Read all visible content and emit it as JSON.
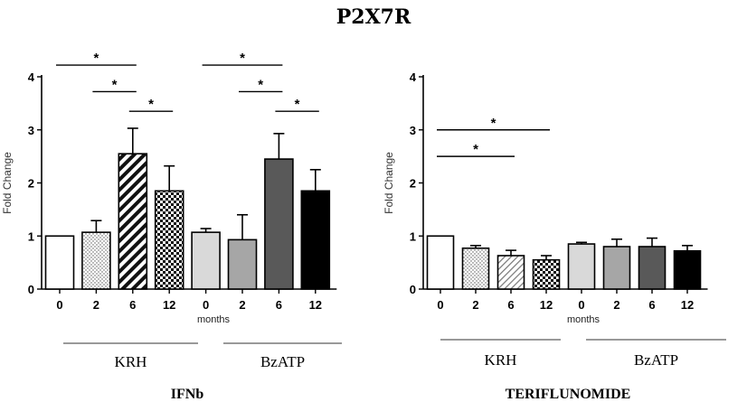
{
  "figure_title": "P2X7R",
  "chart_data": [
    {
      "type": "bar",
      "subtitle": "IFNb",
      "ylabel": "Fold Change",
      "xlabel": "months",
      "ylim": [
        0,
        4
      ],
      "yticks": [
        "0",
        "1",
        "2",
        "3",
        "4"
      ],
      "categories": [
        "0",
        "2",
        "6",
        "12",
        "0",
        "2",
        "6",
        "12"
      ],
      "groups": [
        "KRH",
        "BzATP"
      ],
      "values": [
        1.0,
        1.07,
        2.55,
        1.85,
        1.07,
        0.93,
        2.45,
        1.85
      ],
      "errors": [
        0.0,
        0.22,
        0.48,
        0.47,
        0.07,
        0.47,
        0.48,
        0.4
      ],
      "annotations": [
        {
          "from": 0,
          "to": 2,
          "y": 4.22,
          "label": "*"
        },
        {
          "from": 1,
          "to": 2,
          "y": 3.72,
          "label": "*"
        },
        {
          "from": 2,
          "to": 3,
          "y": 3.35,
          "label": "*"
        },
        {
          "from": 4,
          "to": 6,
          "y": 4.22,
          "label": "*"
        },
        {
          "from": 5,
          "to": 6,
          "y": 3.72,
          "label": "*"
        },
        {
          "from": 6,
          "to": 7,
          "y": 3.35,
          "label": "*"
        }
      ]
    },
    {
      "type": "bar",
      "subtitle": "TERIFLUNOMIDE",
      "ylabel": "Fold Change",
      "xlabel": "months",
      "ylim": [
        0,
        4
      ],
      "yticks": [
        "0",
        "1",
        "2",
        "3",
        "4"
      ],
      "categories": [
        "0",
        "2",
        "6",
        "12",
        "0",
        "2",
        "6",
        "12"
      ],
      "groups": [
        "KRH",
        "BzATP"
      ],
      "values": [
        1.0,
        0.77,
        0.63,
        0.55,
        0.85,
        0.8,
        0.8,
        0.72
      ],
      "errors": [
        0.0,
        0.05,
        0.1,
        0.08,
        0.03,
        0.14,
        0.16,
        0.1
      ],
      "annotations": [
        {
          "from": 0,
          "to": 3,
          "y": 3.0,
          "label": "*"
        },
        {
          "from": 0,
          "to": 2,
          "y": 2.5,
          "label": "*"
        }
      ]
    }
  ]
}
